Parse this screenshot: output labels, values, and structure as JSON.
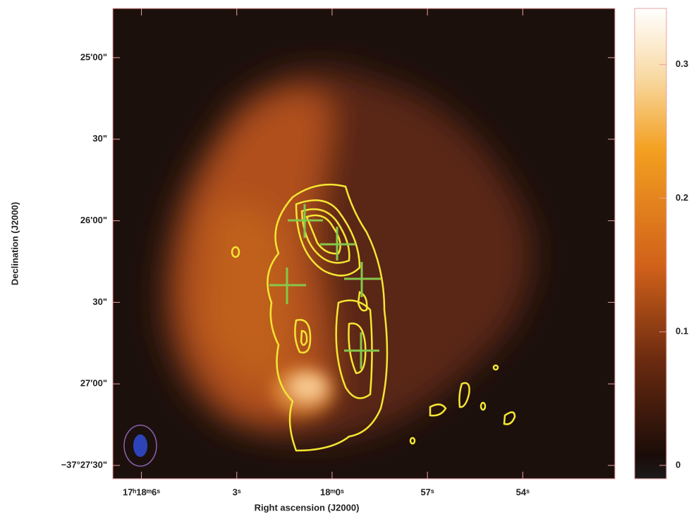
{
  "chart_data": {
    "type": "image",
    "xlabel": "Right ascension (J2000)",
    "ylabel": "Declination (J2000)",
    "xlim": [
      62286.9,
      62271.1
    ],
    "xticks": [
      {
        "value": 62286,
        "label": "17ʰ18ᵐ6ˢ"
      },
      {
        "value": 62283,
        "label": "3ˢ"
      },
      {
        "value": 62280,
        "label": "18ᵐ0ˢ"
      },
      {
        "value": 62277,
        "label": "57ˢ"
      },
      {
        "value": 62274,
        "label": "54ˢ"
      }
    ],
    "ylim": [
      -134854.9,
      -134681.9
    ],
    "yticks": [
      {
        "value": -134700,
        "label": "25'00\""
      },
      {
        "value": -134730,
        "label": "30\""
      },
      {
        "value": -134760,
        "label": "26'00\""
      },
      {
        "value": -134790,
        "label": "30\""
      },
      {
        "value": -134820,
        "label": "27'00\""
      },
      {
        "value": -134850,
        "label": "−37°27'30\""
      }
    ],
    "colorbar": {
      "lim": [
        -0.01,
        0.342
      ],
      "ticks": [
        0,
        0.1,
        0.2,
        0.3
      ]
    }
  }
}
